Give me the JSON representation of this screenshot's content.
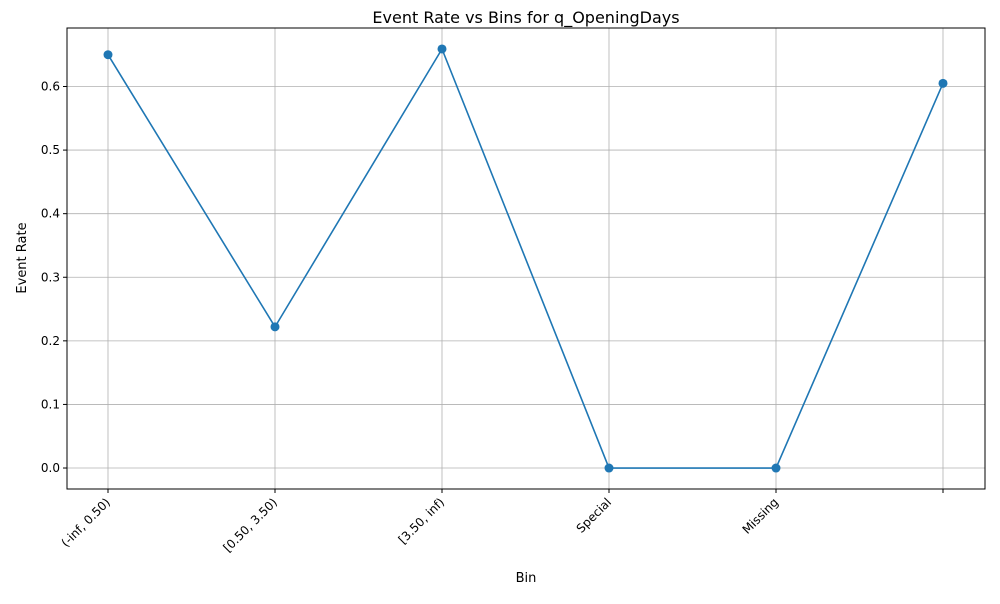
{
  "chart_data": {
    "type": "line",
    "title": "Event Rate vs Bins for q_OpeningDays",
    "xlabel": "Bin",
    "ylabel": "Event Rate",
    "categories": [
      "(-inf, 0.50)",
      "[0.50, 3.50)",
      "[3.50, inf)",
      "Special",
      "Missing",
      ""
    ],
    "values": [
      0.65,
      0.222,
      0.659,
      0.0,
      0.0,
      0.605
    ],
    "ylim": [
      -0.033,
      0.692
    ],
    "yticks": [
      "0.0",
      "0.1",
      "0.2",
      "0.3",
      "0.4",
      "0.5",
      "0.6"
    ],
    "grid": true,
    "line_color": "#1f77b4",
    "marker": "circle"
  }
}
